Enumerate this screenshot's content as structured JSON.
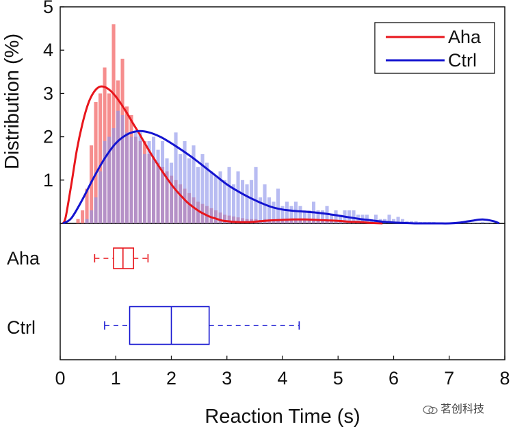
{
  "chart_data": {
    "type": "histogram",
    "xlabel": "Reaction Time (s)",
    "ylabel": "Distribution (%)",
    "xlim": [
      0,
      8
    ],
    "ylim": [
      0,
      5
    ],
    "x_ticks": [
      0,
      1,
      2,
      3,
      4,
      5,
      6,
      7,
      8
    ],
    "y_ticks": [
      1,
      2,
      3,
      4,
      5
    ],
    "bin_width": 0.08,
    "legend": [
      {
        "label": "Aha",
        "color": "#e8161c"
      },
      {
        "label": "Ctrl",
        "color": "#1414d0"
      }
    ],
    "series": [
      {
        "name": "Aha",
        "color": "#e8161c",
        "bar_color": "#f47a7a",
        "bin_centers": [
          0.32,
          0.4,
          0.48,
          0.56,
          0.64,
          0.72,
          0.8,
          0.88,
          0.96,
          1.04,
          1.12,
          1.2,
          1.28,
          1.36,
          1.44,
          1.52,
          1.6,
          1.68,
          1.76,
          1.84,
          1.92,
          2.0,
          2.08,
          2.16,
          2.24,
          2.32,
          2.4,
          2.48,
          2.56,
          2.64,
          2.72,
          2.8,
          2.88,
          2.96,
          3.04,
          3.12,
          3.2,
          3.28,
          3.36,
          3.44,
          3.52,
          3.6,
          3.68,
          3.76,
          3.84,
          3.92,
          4.0,
          4.08,
          4.16,
          4.24,
          4.32,
          4.4,
          4.48,
          4.56,
          4.64,
          4.72,
          4.8,
          4.88,
          4.96,
          5.04,
          5.12,
          5.2,
          5.28,
          5.36,
          5.44,
          5.52
        ],
        "values": [
          0.1,
          0.3,
          0.8,
          1.8,
          2.8,
          3.0,
          3.6,
          3.0,
          4.6,
          3.3,
          3.8,
          2.7,
          2.5,
          2.0,
          1.9,
          1.9,
          1.6,
          1.5,
          1.4,
          1.3,
          1.2,
          1.1,
          1.0,
          0.9,
          0.8,
          0.7,
          0.6,
          0.5,
          0.45,
          0.4,
          0.35,
          0.3,
          0.25,
          0.2,
          0.18,
          0.16,
          0.14,
          0.12,
          0.1,
          0.1,
          0.1,
          0.08,
          0.1,
          0.1,
          0.1,
          0.1,
          0.1,
          0.1,
          0.1,
          0.1,
          0.1,
          0.1,
          0.1,
          0.1,
          0.1,
          0.1,
          0.1,
          0.08,
          0.08,
          0.08,
          0.06,
          0.06,
          0.05,
          0.05,
          0.04,
          0.04
        ],
        "fit_curve": {
          "x": [
            0.05,
            0.1,
            0.2,
            0.3,
            0.4,
            0.5,
            0.6,
            0.7,
            0.8,
            0.9,
            1.0,
            1.1,
            1.2,
            1.3,
            1.4,
            1.5,
            1.6,
            1.7,
            1.8,
            1.9,
            2.0,
            2.1,
            2.2,
            2.3,
            2.4,
            2.5,
            2.6,
            2.7,
            2.8,
            2.9,
            3.0,
            3.2,
            3.4,
            3.6,
            3.8,
            4.0,
            4.2,
            4.4,
            4.6,
            4.8,
            5.0,
            5.2,
            5.4,
            5.6,
            5.8
          ],
          "y": [
            0.0,
            0.15,
            0.9,
            1.7,
            2.3,
            2.75,
            3.02,
            3.15,
            3.15,
            3.07,
            2.93,
            2.75,
            2.55,
            2.33,
            2.12,
            1.9,
            1.68,
            1.47,
            1.27,
            1.08,
            0.9,
            0.74,
            0.6,
            0.47,
            0.37,
            0.28,
            0.21,
            0.15,
            0.11,
            0.07,
            0.05,
            0.03,
            0.03,
            0.05,
            0.07,
            0.08,
            0.09,
            0.09,
            0.08,
            0.07,
            0.06,
            0.04,
            0.03,
            0.01,
            0.0
          ]
        },
        "box": {
          "whisker_low": 0.62,
          "q1": 0.96,
          "median": 1.13,
          "q3": 1.32,
          "whisker_high": 1.58
        }
      },
      {
        "name": "Ctrl",
        "color": "#1414d0",
        "bar_color": "#8d93ea",
        "bin_centers": [
          0.32,
          0.4,
          0.48,
          0.56,
          0.64,
          0.72,
          0.8,
          0.88,
          0.96,
          1.04,
          1.12,
          1.2,
          1.28,
          1.36,
          1.44,
          1.52,
          1.6,
          1.68,
          1.76,
          1.84,
          1.92,
          2.0,
          2.08,
          2.16,
          2.24,
          2.32,
          2.4,
          2.48,
          2.56,
          2.64,
          2.72,
          2.8,
          2.88,
          2.96,
          3.04,
          3.12,
          3.2,
          3.28,
          3.36,
          3.44,
          3.52,
          3.6,
          3.68,
          3.76,
          3.84,
          3.92,
          4.0,
          4.08,
          4.16,
          4.24,
          4.32,
          4.4,
          4.48,
          4.56,
          4.64,
          4.72,
          4.8,
          4.88,
          4.96,
          5.04,
          5.12,
          5.2,
          5.28,
          5.36,
          5.44,
          5.52,
          5.6,
          5.68,
          5.76,
          5.84,
          5.92,
          6.0,
          6.08,
          6.16,
          6.24,
          6.32,
          6.4,
          6.48,
          6.56,
          6.64,
          6.72,
          6.8,
          6.88,
          6.96,
          7.04,
          7.12,
          7.2,
          7.28,
          7.36,
          7.44,
          7.52,
          7.6,
          7.68,
          7.76
        ],
        "values": [
          0.0,
          0.0,
          0.1,
          0.3,
          0.6,
          1.2,
          1.9,
          2.0,
          2.2,
          2.6,
          2.5,
          2.1,
          2.0,
          2.1,
          2.1,
          1.6,
          1.9,
          2.0,
          1.7,
          1.9,
          1.5,
          1.4,
          2.1,
          1.6,
          1.9,
          1.5,
          1.8,
          1.3,
          1.6,
          1.4,
          1.2,
          1.1,
          1.2,
          1.0,
          1.3,
          0.9,
          1.2,
          1.0,
          0.9,
          1.0,
          1.3,
          0.6,
          0.9,
          0.6,
          0.5,
          0.8,
          0.4,
          0.5,
          0.4,
          0.5,
          0.4,
          0.3,
          0.3,
          0.5,
          0.3,
          0.3,
          0.4,
          0.2,
          0.3,
          0.2,
          0.3,
          0.3,
          0.3,
          0.2,
          0.2,
          0.2,
          0.1,
          0.2,
          0.1,
          0.1,
          0.2,
          0.1,
          0.15,
          0.1,
          0.05,
          0.05,
          0.05,
          0.03,
          0.03,
          0.03,
          0.03,
          0.02,
          0.02,
          0.02,
          0.02,
          0.02,
          0.02,
          0.02,
          0.02,
          0.02,
          0.02,
          0.03,
          0.02,
          0.02
        ],
        "fit_curve": {
          "x": [
            0.05,
            0.2,
            0.4,
            0.6,
            0.8,
            1.0,
            1.2,
            1.4,
            1.6,
            1.8,
            2.0,
            2.2,
            2.4,
            2.6,
            2.8,
            3.0,
            3.2,
            3.4,
            3.6,
            3.8,
            4.0,
            4.2,
            4.4,
            4.6,
            4.8,
            5.0,
            5.2,
            5.4,
            5.6,
            5.8,
            6.0,
            6.2,
            6.4,
            6.6,
            6.8,
            7.0,
            7.2,
            7.4,
            7.6,
            7.8,
            7.9
          ],
          "y": [
            0.0,
            0.12,
            0.55,
            1.05,
            1.5,
            1.85,
            2.05,
            2.13,
            2.1,
            2.0,
            1.85,
            1.68,
            1.5,
            1.3,
            1.1,
            0.9,
            0.74,
            0.6,
            0.48,
            0.38,
            0.32,
            0.29,
            0.27,
            0.25,
            0.22,
            0.18,
            0.14,
            0.1,
            0.07,
            0.04,
            0.02,
            0.01,
            0.0,
            0.0,
            0.0,
            0.0,
            0.02,
            0.06,
            0.09,
            0.05,
            0.0
          ]
        },
        "box": {
          "whisker_low": 0.8,
          "q1": 1.25,
          "median": 2.0,
          "q3": 2.68,
          "whisker_high": 4.3
        }
      }
    ],
    "box_groups": [
      "Aha",
      "Ctrl"
    ]
  },
  "watermark": {
    "text": "茗创科技"
  }
}
